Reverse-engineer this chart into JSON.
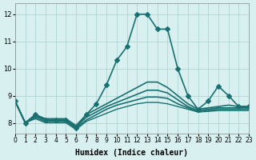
{
  "xlabel": "Humidex (Indice chaleur)",
  "ylabel": "",
  "bg_color": "#d8f0f0",
  "grid_color": "#aacece",
  "line_color": "#1a7070",
  "xlim": [
    0,
    23
  ],
  "ylim": [
    7.6,
    12.4
  ],
  "xticks": [
    0,
    1,
    2,
    3,
    4,
    5,
    6,
    7,
    8,
    9,
    10,
    11,
    12,
    13,
    14,
    15,
    16,
    17,
    18,
    19,
    20,
    21,
    22,
    23
  ],
  "yticks": [
    8,
    9,
    10,
    11,
    12
  ],
  "lines": [
    {
      "x": [
        0,
        1,
        2,
        3,
        4,
        5,
        6,
        7,
        8,
        9,
        10,
        11,
        12,
        13,
        14,
        15,
        16,
        17,
        18,
        19,
        20,
        21,
        22,
        23
      ],
      "y": [
        8.8,
        8.0,
        8.3,
        8.1,
        8.1,
        8.1,
        7.8,
        8.3,
        8.7,
        9.4,
        10.3,
        10.8,
        12.0,
        12.0,
        11.45,
        11.45,
        10.0,
        9.0,
        8.5,
        8.8,
        9.35,
        9.0,
        8.6,
        8.6
      ],
      "marker": "D",
      "markersize": 3,
      "linewidth": 1.2
    },
    {
      "x": [
        0,
        1,
        2,
        3,
        4,
        5,
        6,
        7,
        8,
        9,
        10,
        11,
        12,
        13,
        14,
        15,
        16,
        17,
        18,
        19,
        20,
        21,
        22,
        23
      ],
      "y": [
        8.8,
        8.0,
        8.3,
        8.15,
        8.15,
        8.15,
        7.9,
        8.3,
        8.5,
        8.7,
        8.9,
        9.1,
        9.3,
        9.5,
        9.5,
        9.3,
        9.0,
        8.7,
        8.5,
        8.55,
        8.6,
        8.65,
        8.6,
        8.6
      ],
      "marker": null,
      "markersize": 0,
      "linewidth": 1.2
    },
    {
      "x": [
        0,
        1,
        2,
        3,
        4,
        5,
        6,
        7,
        8,
        9,
        10,
        11,
        12,
        13,
        14,
        15,
        16,
        17,
        18,
        19,
        20,
        21,
        22,
        23
      ],
      "y": [
        8.8,
        8.0,
        8.25,
        8.1,
        8.1,
        8.1,
        7.85,
        8.2,
        8.4,
        8.6,
        8.75,
        8.9,
        9.05,
        9.2,
        9.2,
        9.1,
        8.85,
        8.6,
        8.45,
        8.5,
        8.55,
        8.55,
        8.55,
        8.55
      ],
      "marker": null,
      "markersize": 0,
      "linewidth": 1.2
    },
    {
      "x": [
        0,
        1,
        2,
        3,
        4,
        5,
        6,
        7,
        8,
        9,
        10,
        11,
        12,
        13,
        14,
        15,
        16,
        17,
        18,
        19,
        20,
        21,
        22,
        23
      ],
      "y": [
        8.8,
        8.0,
        8.2,
        8.05,
        8.05,
        8.05,
        7.8,
        8.1,
        8.3,
        8.5,
        8.65,
        8.75,
        8.85,
        8.95,
        8.95,
        8.9,
        8.7,
        8.55,
        8.4,
        8.45,
        8.5,
        8.5,
        8.5,
        8.5
      ],
      "marker": null,
      "markersize": 0,
      "linewidth": 1.2
    },
    {
      "x": [
        0,
        1,
        2,
        3,
        4,
        5,
        6,
        7,
        8,
        9,
        10,
        11,
        12,
        13,
        14,
        15,
        16,
        17,
        18,
        19,
        20,
        21,
        22,
        23
      ],
      "y": [
        8.8,
        8.0,
        8.15,
        8.0,
        8.0,
        8.0,
        7.75,
        8.05,
        8.2,
        8.35,
        8.5,
        8.6,
        8.7,
        8.75,
        8.75,
        8.7,
        8.6,
        8.5,
        8.4,
        8.42,
        8.45,
        8.45,
        8.45,
        8.45
      ],
      "marker": null,
      "markersize": 0,
      "linewidth": 1.0
    }
  ]
}
